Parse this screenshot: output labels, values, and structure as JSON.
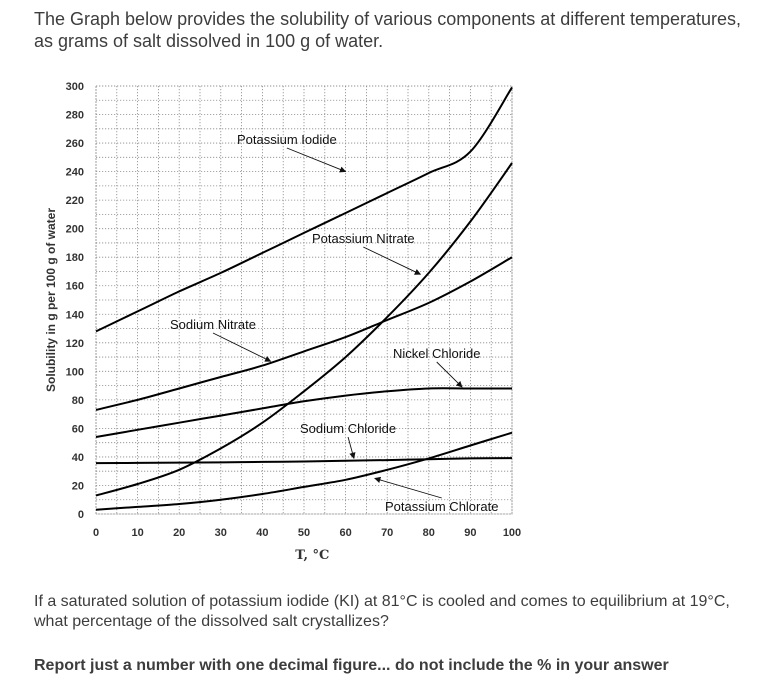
{
  "intro_text": "The Graph below provides the solubility of various components at different temperatures, as grams of salt dissolved in 100 g of water.",
  "question_text": "If a saturated solution of potassium iodide (KI) at 81°C is cooled and comes to equilibrium at 19°C, what percentage of the dissolved salt crystallizes?",
  "instruction_text": "Report just a number with one decimal figure... do not include the % in your answer",
  "chart_data": {
    "type": "line",
    "xlabel": "T, °C",
    "ylabel": "Solubility in g per 100 g of water",
    "xlim": [
      0,
      100
    ],
    "ylim": [
      0,
      300
    ],
    "x_ticks": [
      0,
      10,
      20,
      30,
      40,
      50,
      60,
      70,
      80,
      90,
      100
    ],
    "y_ticks": [
      0,
      20,
      40,
      60,
      80,
      100,
      120,
      140,
      160,
      180,
      200,
      220,
      240,
      260,
      280,
      300
    ],
    "grid": true,
    "series": [
      {
        "name": "Potassium Iodide",
        "points": [
          [
            0,
            128
          ],
          [
            10,
            142
          ],
          [
            20,
            156
          ],
          [
            30,
            169
          ],
          [
            40,
            183
          ],
          [
            50,
            197
          ],
          [
            60,
            211
          ],
          [
            70,
            225
          ],
          [
            80,
            239
          ],
          [
            90,
            254
          ],
          [
            100,
            299
          ]
        ]
      },
      {
        "name": "Potassium Nitrate",
        "points": [
          [
            0,
            13
          ],
          [
            10,
            21
          ],
          [
            20,
            31
          ],
          [
            30,
            46
          ],
          [
            40,
            64
          ],
          [
            50,
            86
          ],
          [
            60,
            110
          ],
          [
            70,
            138
          ],
          [
            80,
            169
          ],
          [
            90,
            205
          ],
          [
            100,
            246
          ]
        ]
      },
      {
        "name": "Sodium Nitrate",
        "points": [
          [
            0,
            73
          ],
          [
            10,
            80
          ],
          [
            20,
            88
          ],
          [
            30,
            96
          ],
          [
            40,
            104
          ],
          [
            50,
            114
          ],
          [
            60,
            124
          ],
          [
            70,
            136
          ],
          [
            80,
            148
          ],
          [
            90,
            163
          ],
          [
            100,
            180
          ]
        ]
      },
      {
        "name": "Nickel Chloride",
        "points": [
          [
            0,
            54
          ],
          [
            10,
            59
          ],
          [
            20,
            64
          ],
          [
            30,
            69
          ],
          [
            40,
            74
          ],
          [
            50,
            79
          ],
          [
            60,
            83
          ],
          [
            70,
            86
          ],
          [
            80,
            88
          ],
          [
            90,
            88
          ],
          [
            100,
            88
          ]
        ]
      },
      {
        "name": "Sodium Chloride",
        "points": [
          [
            0,
            35.7
          ],
          [
            10,
            35.8
          ],
          [
            20,
            36
          ],
          [
            30,
            36.2
          ],
          [
            40,
            36.5
          ],
          [
            50,
            36.8
          ],
          [
            60,
            37.3
          ],
          [
            70,
            37.8
          ],
          [
            80,
            38.4
          ],
          [
            90,
            39
          ],
          [
            100,
            39.2
          ]
        ]
      },
      {
        "name": "Potassium Chlorate",
        "points": [
          [
            0,
            3
          ],
          [
            10,
            5
          ],
          [
            20,
            7
          ],
          [
            30,
            10
          ],
          [
            40,
            14
          ],
          [
            50,
            19
          ],
          [
            60,
            24
          ],
          [
            70,
            31
          ],
          [
            80,
            39
          ],
          [
            90,
            48
          ],
          [
            100,
            57
          ]
        ]
      }
    ],
    "annotations": [
      {
        "text": "Potassium Iodide",
        "arrow_to": [
          60,
          240
        ]
      },
      {
        "text": "Potassium Nitrate",
        "arrow_to": [
          78,
          168
        ]
      },
      {
        "text": "Sodium Nitrate",
        "arrow_to": [
          42,
          107
        ]
      },
      {
        "text": "Nickel Chloride",
        "arrow_to": [
          88,
          89
        ]
      },
      {
        "text": "Sodium Chloride",
        "arrow_to": [
          62,
          39
        ]
      },
      {
        "text": "Potassium Chlorate",
        "arrow_to": [
          67,
          25
        ]
      }
    ]
  }
}
